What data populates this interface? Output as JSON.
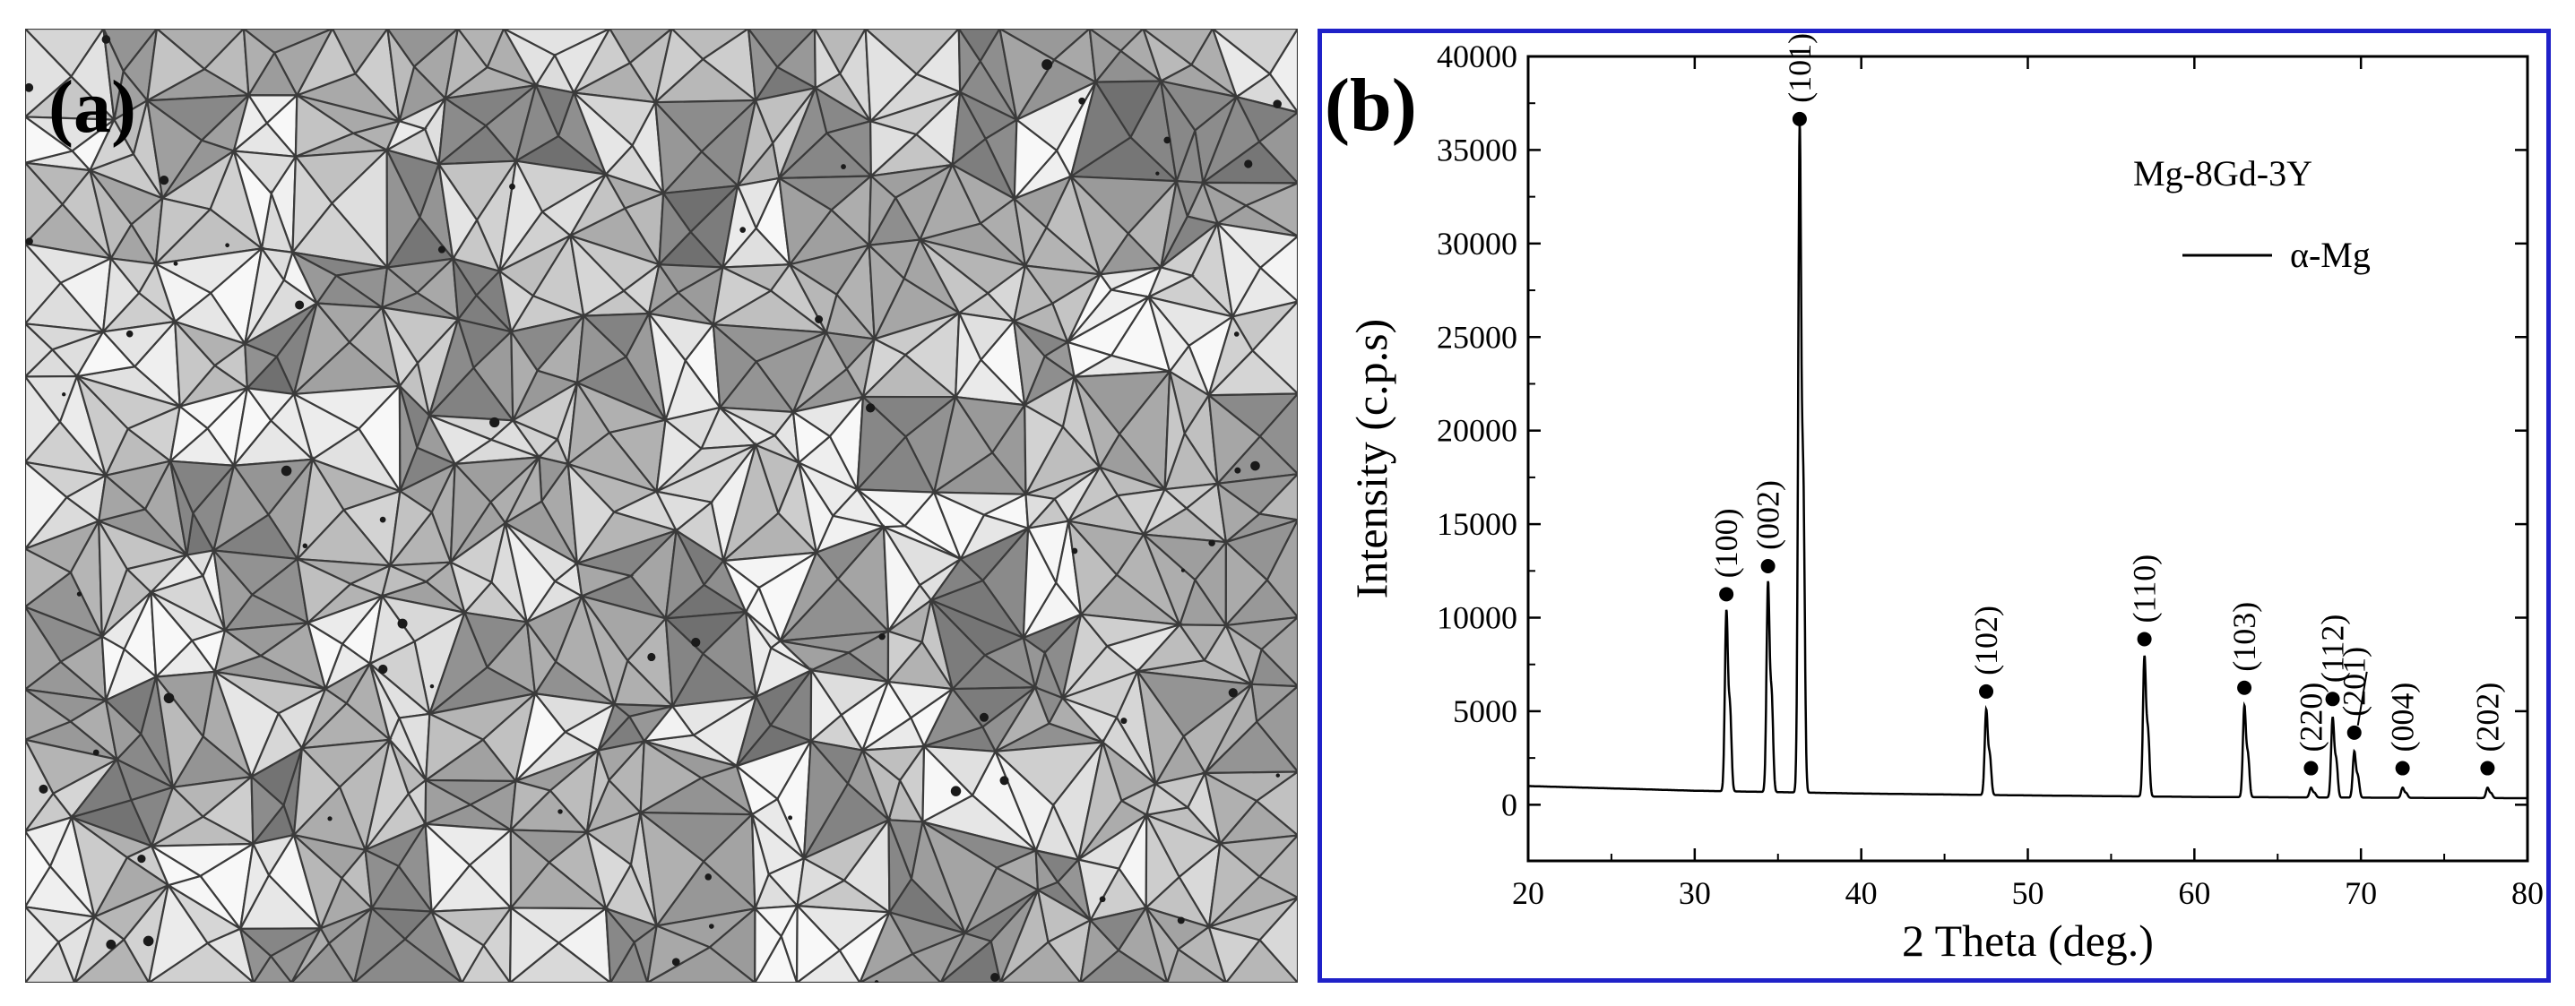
{
  "panel_a": {
    "label": "(a)"
  },
  "panel_b": {
    "label": "(b)"
  },
  "colors": {
    "frame": "#1f21c8",
    "line": "#000000",
    "micrograph_base": "#8f8f8f"
  },
  "chart_data": {
    "type": "line",
    "xlabel": "2 Theta (deg.)",
    "ylabel": "Intensity (c.p.s)",
    "xlim": [
      20,
      80
    ],
    "ylim": [
      -3000,
      40000
    ],
    "x_ticks": [
      20,
      30,
      40,
      50,
      60,
      70,
      80
    ],
    "y_ticks": [
      0,
      5000,
      10000,
      15000,
      20000,
      25000,
      30000,
      35000,
      40000
    ],
    "grid": false,
    "legend": {
      "title": "Mg-8Gd-3Y",
      "entries": [
        "α-Mg"
      ],
      "placement": "top-right"
    },
    "baseline": [
      [
        20,
        1000
      ],
      [
        30,
        750
      ],
      [
        40,
        600
      ],
      [
        50,
        500
      ],
      [
        60,
        420
      ],
      [
        70,
        380
      ],
      [
        80,
        350
      ]
    ],
    "peaks": [
      {
        "x": 31.9,
        "y": 10200,
        "label": "(100)"
      },
      {
        "x": 34.4,
        "y": 11700,
        "label": "(002)"
      },
      {
        "x": 36.3,
        "y": 35600,
        "label": "(101)"
      },
      {
        "x": 47.5,
        "y": 5000,
        "label": "(102)"
      },
      {
        "x": 57.0,
        "y": 7800,
        "label": "(110)"
      },
      {
        "x": 63.0,
        "y": 5200,
        "label": "(103)"
      },
      {
        "x": 67.0,
        "y": 900,
        "label": "(220)"
      },
      {
        "x": 68.3,
        "y": 4600,
        "label": "(112)"
      },
      {
        "x": 69.6,
        "y": 2800,
        "label": "(201)"
      },
      {
        "x": 72.5,
        "y": 900,
        "label": "(004)"
      },
      {
        "x": 77.6,
        "y": 900,
        "label": "(202)"
      }
    ]
  }
}
